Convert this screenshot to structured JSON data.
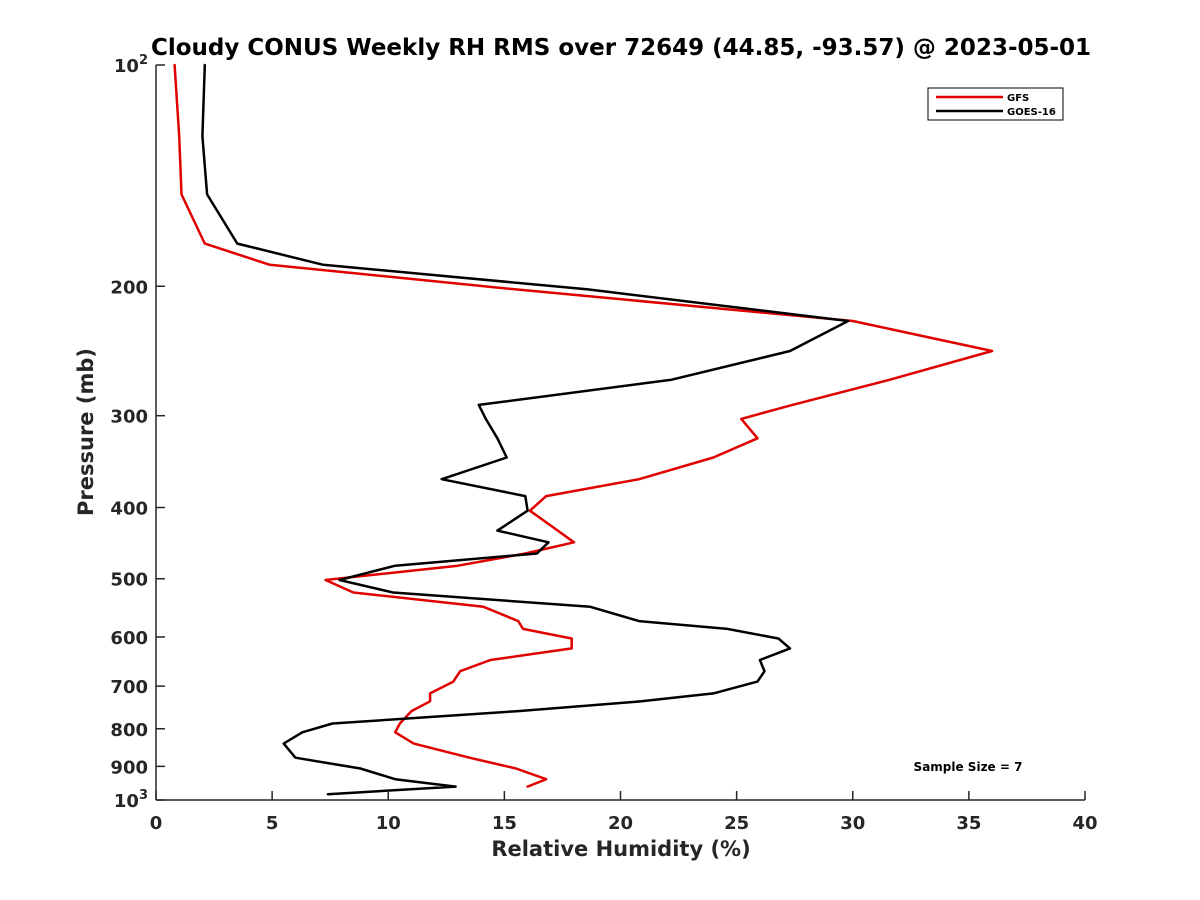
{
  "chart_data": {
    "type": "line",
    "title": "Cloudy CONUS Weekly RH RMS over 72649 (44.85, -93.57) @ 2023-05-01",
    "xlabel": "Relative Humidity (%)",
    "ylabel": "Pressure (mb)",
    "xlim": [
      0,
      40
    ],
    "ylim": [
      100,
      1000
    ],
    "y_scale": "log",
    "y_reversed": true,
    "x_ticks": [
      "0",
      "5",
      "10",
      "15",
      "20",
      "25",
      "30",
      "35",
      "40"
    ],
    "y_ticks": [
      {
        "value": 100,
        "base": "10",
        "exp": "2"
      },
      {
        "value": 200,
        "label": "200"
      },
      {
        "value": 300,
        "label": "300"
      },
      {
        "value": 400,
        "label": "400"
      },
      {
        "value": 500,
        "label": "500"
      },
      {
        "value": 600,
        "label": "600"
      },
      {
        "value": 700,
        "label": "700"
      },
      {
        "value": 800,
        "label": "800"
      },
      {
        "value": 900,
        "label": "900"
      },
      {
        "value": 1000,
        "base": "10",
        "exp": "3"
      }
    ],
    "grid": false,
    "legend_position": "top-right",
    "annotation": "Sample Size = 7",
    "series": [
      {
        "name": "GFS",
        "color": "#e00000",
        "points": [
          [
            0.8,
            100
          ],
          [
            1.0,
            125
          ],
          [
            1.1,
            150
          ],
          [
            2.1,
            175
          ],
          [
            4.9,
            187
          ],
          [
            15.5,
            202
          ],
          [
            30.0,
            223
          ],
          [
            36.0,
            245
          ],
          [
            31.6,
            268
          ],
          [
            27.4,
            290
          ],
          [
            25.2,
            303
          ],
          [
            25.9,
            322
          ],
          [
            24.0,
            342
          ],
          [
            20.8,
            366
          ],
          [
            16.8,
            386
          ],
          [
            16.1,
            404
          ],
          [
            17.3,
            430
          ],
          [
            18.0,
            446
          ],
          [
            15.9,
            462
          ],
          [
            13.0,
            480
          ],
          [
            7.3,
            502
          ],
          [
            8.5,
            522
          ],
          [
            14.1,
            546
          ],
          [
            15.6,
            571
          ],
          [
            15.8,
            585
          ],
          [
            17.9,
            603
          ],
          [
            17.9,
            622
          ],
          [
            14.4,
            645
          ],
          [
            13.1,
            668
          ],
          [
            12.8,
            690
          ],
          [
            11.8,
            716
          ],
          [
            11.8,
            734
          ],
          [
            11.0,
            757
          ],
          [
            10.5,
            787
          ],
          [
            10.3,
            809
          ],
          [
            11.1,
            838
          ],
          [
            13.5,
            876
          ],
          [
            15.5,
            906
          ],
          [
            16.8,
            937
          ],
          [
            16.0,
            959
          ]
        ]
      },
      {
        "name": "GOES-16",
        "color": "#000000",
        "points": [
          [
            2.1,
            100
          ],
          [
            2.0,
            125
          ],
          [
            2.2,
            150
          ],
          [
            3.5,
            175
          ],
          [
            7.2,
            187
          ],
          [
            18.6,
            202
          ],
          [
            29.8,
            223
          ],
          [
            27.3,
            245
          ],
          [
            22.2,
            268
          ],
          [
            13.9,
            290
          ],
          [
            14.2,
            303
          ],
          [
            14.7,
            322
          ],
          [
            15.1,
            342
          ],
          [
            12.3,
            366
          ],
          [
            15.9,
            386
          ],
          [
            16.0,
            404
          ],
          [
            14.7,
            430
          ],
          [
            16.9,
            446
          ],
          [
            16.4,
            462
          ],
          [
            10.3,
            480
          ],
          [
            7.9,
            502
          ],
          [
            10.2,
            522
          ],
          [
            18.7,
            546
          ],
          [
            20.8,
            571
          ],
          [
            24.6,
            585
          ],
          [
            26.8,
            603
          ],
          [
            27.3,
            622
          ],
          [
            26.0,
            645
          ],
          [
            26.2,
            668
          ],
          [
            25.9,
            690
          ],
          [
            24.0,
            716
          ],
          [
            20.9,
            734
          ],
          [
            15.6,
            757
          ],
          [
            7.6,
            787
          ],
          [
            6.3,
            809
          ],
          [
            5.5,
            838
          ],
          [
            6.0,
            876
          ],
          [
            8.8,
            906
          ],
          [
            10.3,
            937
          ],
          [
            12.9,
            959
          ],
          [
            7.4,
            982
          ]
        ]
      }
    ]
  }
}
